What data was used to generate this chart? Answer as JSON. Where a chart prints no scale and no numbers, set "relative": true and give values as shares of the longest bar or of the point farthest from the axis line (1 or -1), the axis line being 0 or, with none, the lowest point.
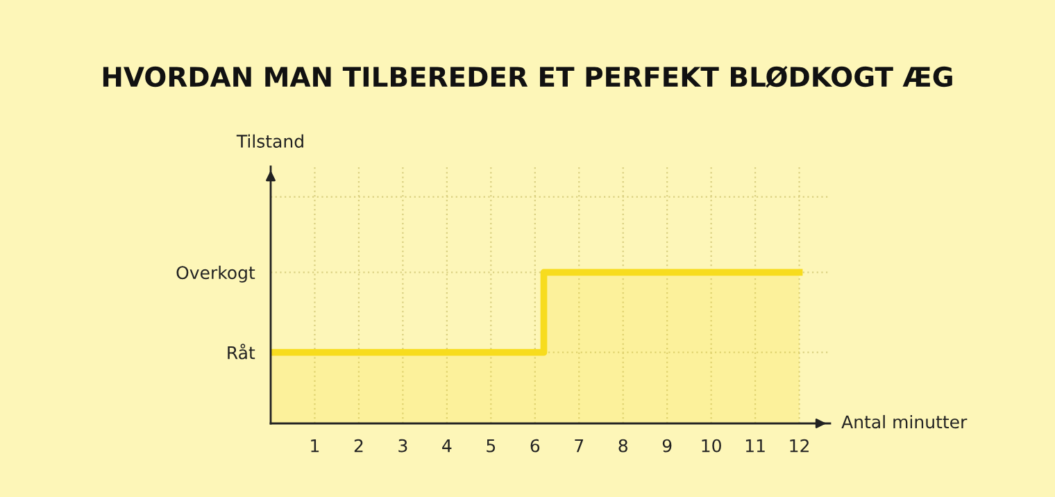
{
  "chart_data": {
    "type": "area",
    "title": "HVORDAN MAN TILBEREDER ET PERFEKT BLØDKOGT ÆG",
    "xlabel": "Antal minutter",
    "annotations": [
      "Tilstand"
    ],
    "x": [
      0,
      6.2,
      12
    ],
    "series": [
      {
        "color": "#f7dc1e",
        "values": [
          0.47,
          1,
          1
        ]
      }
    ],
    "relative": true,
    "y_categories": [
      "Overkogt",
      "Råt"
    ],
    "xlim": [
      0,
      12.7
    ],
    "xticks": [
      1,
      2,
      3,
      4,
      5,
      6,
      7,
      8,
      9,
      10,
      11,
      12
    ],
    "grid": true
  }
}
